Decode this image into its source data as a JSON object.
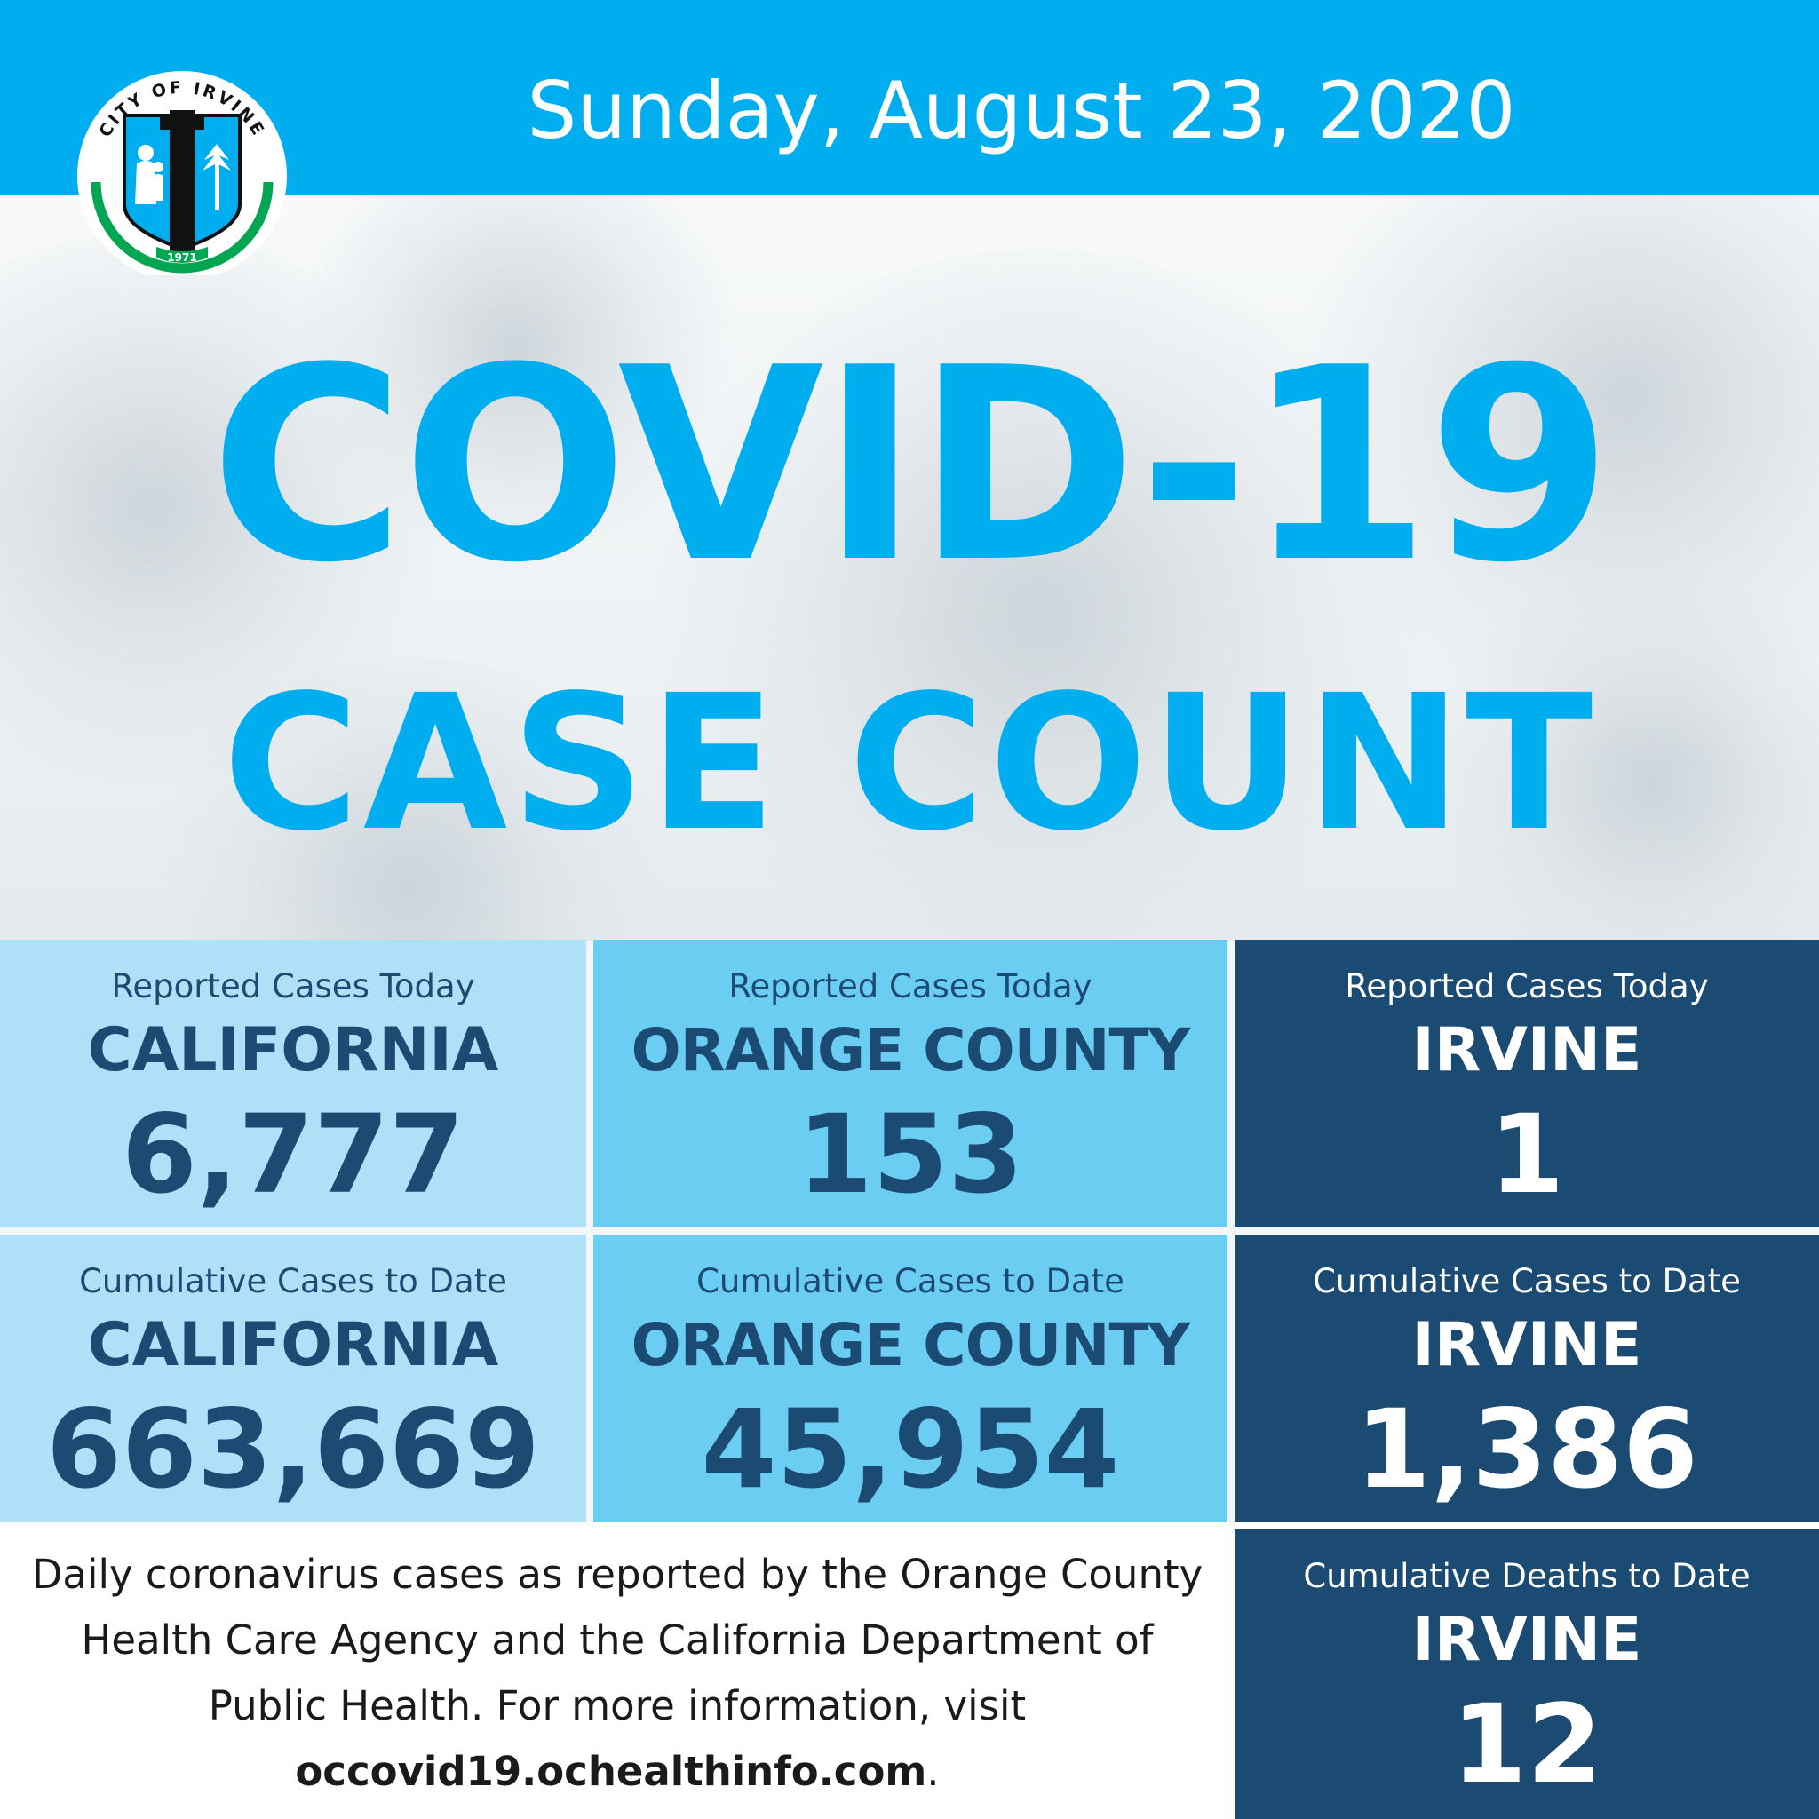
{
  "header": {
    "date": "Sunday, August 23, 2020"
  },
  "logo": {
    "top_text": "CITY OF IRVINE",
    "year": "1971"
  },
  "title": {
    "line1": "COVID-19",
    "line2": "CASE COUNT"
  },
  "stats": {
    "california_today": {
      "label": "Reported Cases Today",
      "place": "CALIFORNIA",
      "value": "6,777"
    },
    "orange_today": {
      "label": "Reported Cases Today",
      "place": "ORANGE COUNTY",
      "value": "153"
    },
    "irvine_today": {
      "label": "Reported Cases Today",
      "place": "IRVINE",
      "value": "1"
    },
    "california_cumulative": {
      "label": "Cumulative Cases to Date",
      "place": "CALIFORNIA",
      "value": "663,669"
    },
    "orange_cumulative": {
      "label": "Cumulative Cases to Date",
      "place": "ORANGE COUNTY",
      "value": "45,954"
    },
    "irvine_cumulative": {
      "label": "Cumulative Cases to Date",
      "place": "IRVINE",
      "value": "1,386"
    },
    "irvine_deaths": {
      "label": "Cumulative Deaths to Date",
      "place": "IRVINE",
      "value": "12"
    }
  },
  "footer": {
    "text": "Daily coronavirus cases as reported by the Orange County Health Care Agency and the California Department of Public Health. For more information, visit",
    "link": "occovid19.ochealthinfo.com",
    "end": "."
  },
  "colors": {
    "brand_blue": "#00aeef",
    "navy": "#1b4a72",
    "light_cell": "#a8def7",
    "mid_cell": "#6ccdf3",
    "logo_green": "#00a651",
    "logo_black": "#111111"
  }
}
